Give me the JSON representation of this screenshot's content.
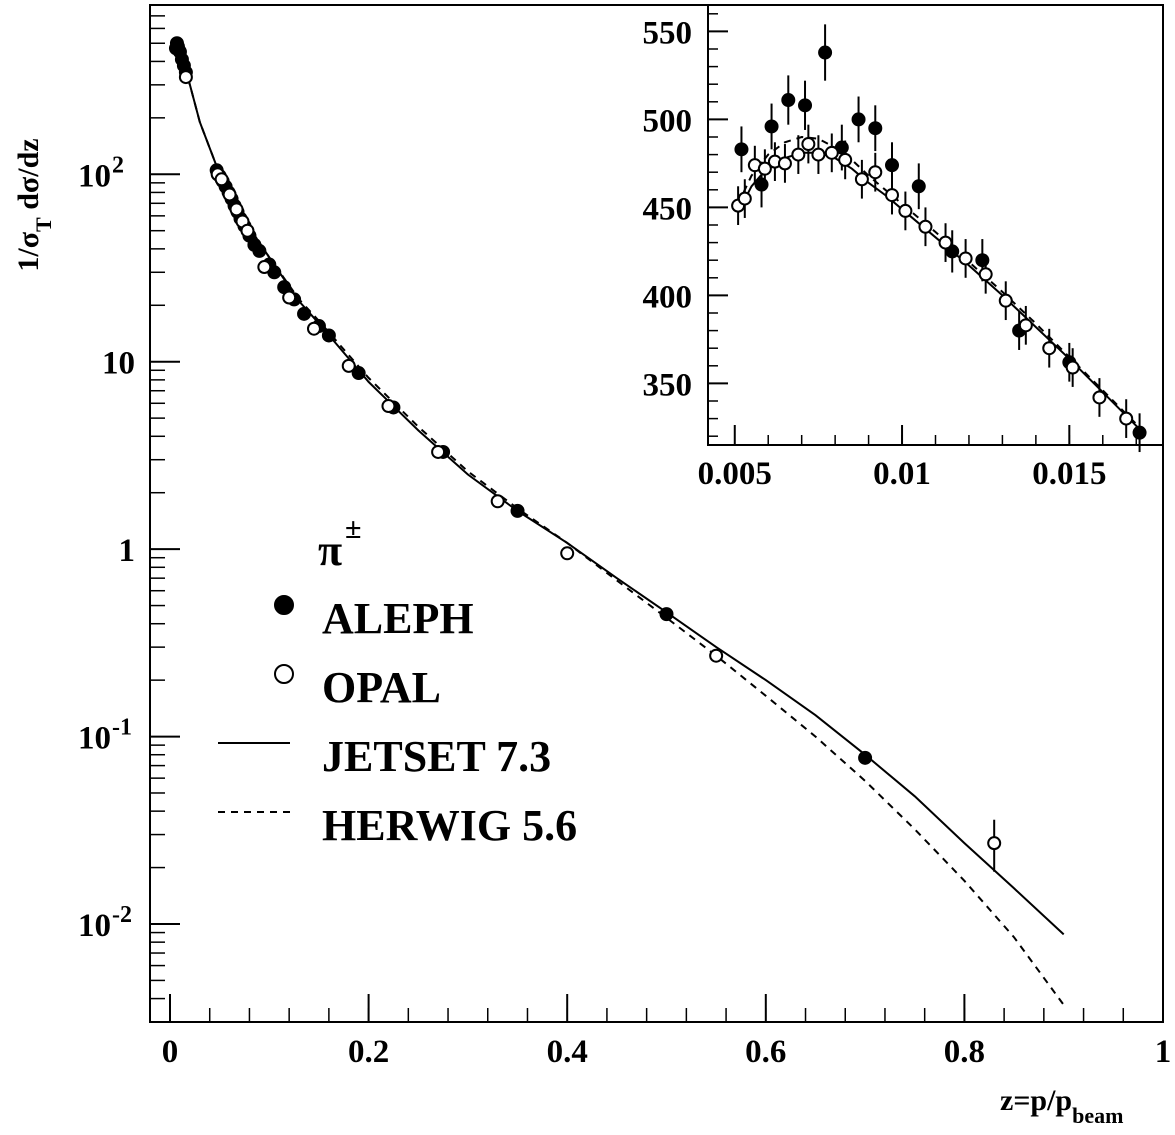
{
  "chart_data": [
    {
      "type": "scatter",
      "xlabel": "z=p/p",
      "xlabel_sub": "beam",
      "ylabel_parts": [
        "1/σ",
        "T",
        " dσ/dz"
      ],
      "xlim": [
        0,
        1
      ],
      "ylim": [
        0.003,
        800
      ],
      "yscale": "log",
      "grid": false,
      "x_ticks": [
        {
          "value": 0,
          "label": "0"
        },
        {
          "value": 0.2,
          "label": "0.2"
        },
        {
          "value": 0.4,
          "label": "0.4"
        },
        {
          "value": 0.6,
          "label": "0.6"
        },
        {
          "value": 0.8,
          "label": "0.8"
        },
        {
          "value": 1,
          "label": "1"
        }
      ],
      "y_ticks": [
        {
          "value": 100,
          "base": "10",
          "exp": "2"
        },
        {
          "value": 10,
          "base": "10",
          "exp": ""
        },
        {
          "value": 1,
          "base": "1",
          "exp": ""
        },
        {
          "value": 0.1,
          "base": "10",
          "exp": "-1"
        },
        {
          "value": 0.01,
          "base": "10",
          "exp": "-2"
        }
      ],
      "legend": {
        "placement": "center-left",
        "title": "π",
        "title_sup": "±",
        "entries": [
          "ALEPH",
          "OPAL",
          "JETSET 7.3",
          "HERWIG 5.6"
        ]
      },
      "series": [
        {
          "name": "ALEPH",
          "kind": "points",
          "marker": "filled-circle",
          "points": [
            [
              0.006,
              470
            ],
            [
              0.007,
              500
            ],
            [
              0.008,
              480
            ],
            [
              0.009,
              460
            ],
            [
              0.01,
              450
            ],
            [
              0.012,
              410
            ],
            [
              0.014,
              380
            ],
            [
              0.016,
              350
            ],
            [
              0.047,
              105
            ],
            [
              0.05,
              98
            ],
            [
              0.053,
              92
            ],
            [
              0.056,
              86
            ],
            [
              0.059,
              80
            ],
            [
              0.062,
              74
            ],
            [
              0.065,
              68
            ],
            [
              0.068,
              63
            ],
            [
              0.071,
              58
            ],
            [
              0.075,
              53
            ],
            [
              0.08,
              47
            ],
            [
              0.085,
              42
            ],
            [
              0.09,
              39
            ],
            [
              0.1,
              33
            ],
            [
              0.105,
              30
            ],
            [
              0.115,
              25
            ],
            [
              0.125,
              21.5
            ],
            [
              0.135,
              18
            ],
            [
              0.15,
              15.5
            ],
            [
              0.16,
              13.8
            ],
            [
              0.19,
              8.7
            ],
            [
              0.225,
              5.7
            ],
            [
              0.275,
              3.3
            ],
            [
              0.35,
              1.6
            ],
            [
              0.5,
              0.45
            ],
            [
              0.7,
              0.077
            ]
          ]
        },
        {
          "name": "OPAL",
          "kind": "points",
          "marker": "open-circle",
          "points": [
            [
              0.016,
              330
            ],
            [
              0.048,
              100
            ],
            [
              0.052,
              94
            ],
            [
              0.06,
              78
            ],
            [
              0.067,
              65
            ],
            [
              0.073,
              56
            ],
            [
              0.078,
              50
            ],
            [
              0.095,
              32
            ],
            [
              0.12,
              22
            ],
            [
              0.145,
              15
            ],
            [
              0.18,
              9.5
            ],
            [
              0.22,
              5.8
            ],
            [
              0.27,
              3.3
            ],
            [
              0.33,
              1.8
            ],
            [
              0.4,
              0.95
            ],
            [
              0.55,
              0.27
            ],
            [
              0.83,
              0.027
            ]
          ],
          "error_bars": [
            {
              "x": 0.83,
              "low": 0.019,
              "high": 0.036
            }
          ]
        },
        {
          "name": "JETSET 7.3",
          "kind": "line",
          "style": "solid",
          "points": [
            [
              0.005,
              430
            ],
            [
              0.008,
              470
            ],
            [
              0.012,
              420
            ],
            [
              0.02,
              300
            ],
            [
              0.03,
              190
            ],
            [
              0.05,
              100
            ],
            [
              0.07,
              62
            ],
            [
              0.1,
              36
            ],
            [
              0.13,
              21
            ],
            [
              0.15,
              16
            ],
            [
              0.2,
              7.8
            ],
            [
              0.25,
              4.3
            ],
            [
              0.3,
              2.5
            ],
            [
              0.35,
              1.6
            ],
            [
              0.4,
              1.08
            ],
            [
              0.45,
              0.7
            ],
            [
              0.5,
              0.46
            ],
            [
              0.55,
              0.3
            ],
            [
              0.6,
              0.2
            ],
            [
              0.65,
              0.13
            ],
            [
              0.7,
              0.08
            ],
            [
              0.75,
              0.048
            ],
            [
              0.8,
              0.027
            ],
            [
              0.85,
              0.0155
            ],
            [
              0.9,
              0.0088
            ]
          ]
        },
        {
          "name": "HERWIG 5.6",
          "kind": "line",
          "style": "dashed",
          "points": [
            [
              0.005,
              430
            ],
            [
              0.008,
              470
            ],
            [
              0.012,
              420
            ],
            [
              0.02,
              300
            ],
            [
              0.03,
              190
            ],
            [
              0.05,
              100
            ],
            [
              0.07,
              62
            ],
            [
              0.1,
              36
            ],
            [
              0.13,
              21.5
            ],
            [
              0.15,
              16.5
            ],
            [
              0.2,
              8.2
            ],
            [
              0.25,
              4.5
            ],
            [
              0.3,
              2.6
            ],
            [
              0.35,
              1.65
            ],
            [
              0.4,
              1.08
            ],
            [
              0.45,
              0.68
            ],
            [
              0.5,
              0.43
            ],
            [
              0.55,
              0.27
            ],
            [
              0.6,
              0.165
            ],
            [
              0.65,
              0.1
            ],
            [
              0.7,
              0.058
            ],
            [
              0.75,
              0.032
            ],
            [
              0.8,
              0.017
            ],
            [
              0.85,
              0.0085
            ],
            [
              0.9,
              0.0037
            ]
          ]
        }
      ]
    },
    {
      "type": "scatter",
      "xlim": [
        0.0042,
        0.0178
      ],
      "ylim": [
        315,
        565
      ],
      "yscale": "linear",
      "grid": false,
      "x_ticks": [
        {
          "value": 0.005,
          "label": "0.005"
        },
        {
          "value": 0.01,
          "label": "0.01"
        },
        {
          "value": 0.015,
          "label": "0.015"
        }
      ],
      "y_ticks": [
        {
          "value": 350,
          "label": "350"
        },
        {
          "value": 400,
          "label": "400"
        },
        {
          "value": 450,
          "label": "450"
        },
        {
          "value": 500,
          "label": "500"
        },
        {
          "value": 550,
          "label": "550"
        }
      ],
      "series": [
        {
          "name": "ALEPH",
          "kind": "points",
          "marker": "filled-circle",
          "points": [
            [
              0.0052,
              483,
              13
            ],
            [
              0.0058,
              463,
              13
            ],
            [
              0.0061,
              496,
              13
            ],
            [
              0.0066,
              511,
              14
            ],
            [
              0.0071,
              508,
              14
            ],
            [
              0.0077,
              538,
              16
            ],
            [
              0.0082,
              484,
              13
            ],
            [
              0.0087,
              500,
              13
            ],
            [
              0.0092,
              495,
              13
            ],
            [
              0.0097,
              474,
              13
            ],
            [
              0.0105,
              462,
              13
            ],
            [
              0.0115,
              425,
              12
            ],
            [
              0.0124,
              420,
              12
            ],
            [
              0.0135,
              380,
              11
            ],
            [
              0.015,
              362,
              11
            ],
            [
              0.0171,
              322,
              11
            ]
          ]
        },
        {
          "name": "OPAL",
          "kind": "points",
          "marker": "open-circle",
          "points": [
            [
              0.0051,
              451,
              11
            ],
            [
              0.0053,
              455,
              11
            ],
            [
              0.0056,
              474,
              11
            ],
            [
              0.0059,
              472,
              11
            ],
            [
              0.0062,
              476,
              11
            ],
            [
              0.0065,
              475,
              11
            ],
            [
              0.0069,
              480,
              11
            ],
            [
              0.0072,
              486,
              11
            ],
            [
              0.0075,
              480,
              11
            ],
            [
              0.0079,
              481,
              11
            ],
            [
              0.0083,
              477,
              11
            ],
            [
              0.0088,
              466,
              11
            ],
            [
              0.0092,
              470,
              11
            ],
            [
              0.0097,
              457,
              11
            ],
            [
              0.0101,
              448,
              11
            ],
            [
              0.0107,
              439,
              11
            ],
            [
              0.0113,
              430,
              11
            ],
            [
              0.0119,
              421,
              11
            ],
            [
              0.0125,
              412,
              11
            ],
            [
              0.0131,
              397,
              11
            ],
            [
              0.0137,
              383,
              11
            ],
            [
              0.0144,
              370,
              11
            ],
            [
              0.0151,
              359,
              11
            ],
            [
              0.0159,
              342,
              11
            ],
            [
              0.0167,
              330,
              11
            ]
          ]
        },
        {
          "name": "JETSET 7.3",
          "kind": "line",
          "style": "solid",
          "points": [
            [
              0.0051,
              447
            ],
            [
              0.0055,
              462
            ],
            [
              0.006,
              473
            ],
            [
              0.0065,
              478
            ],
            [
              0.007,
              481
            ],
            [
              0.0075,
              481
            ],
            [
              0.008,
              478
            ],
            [
              0.0085,
              472
            ],
            [
              0.009,
              464
            ],
            [
              0.0095,
              457
            ],
            [
              0.01,
              449
            ],
            [
              0.011,
              433
            ],
            [
              0.012,
              417
            ],
            [
              0.013,
              400
            ],
            [
              0.014,
              382
            ],
            [
              0.015,
              364
            ],
            [
              0.016,
              345
            ],
            [
              0.0171,
              324
            ]
          ]
        },
        {
          "name": "HERWIG 5.6",
          "kind": "line",
          "style": "dashed",
          "points": [
            [
              0.0051,
              452
            ],
            [
              0.0055,
              468
            ],
            [
              0.006,
              480
            ],
            [
              0.0065,
              487
            ],
            [
              0.007,
              490
            ],
            [
              0.0075,
              489
            ],
            [
              0.008,
              484
            ],
            [
              0.0085,
              477
            ],
            [
              0.009,
              468
            ],
            [
              0.0095,
              460
            ],
            [
              0.01,
              452
            ],
            [
              0.011,
              436
            ],
            [
              0.012,
              419
            ],
            [
              0.013,
              402
            ],
            [
              0.014,
              384
            ],
            [
              0.015,
              365
            ],
            [
              0.016,
              346
            ],
            [
              0.0171,
              325
            ]
          ]
        }
      ]
    }
  ]
}
